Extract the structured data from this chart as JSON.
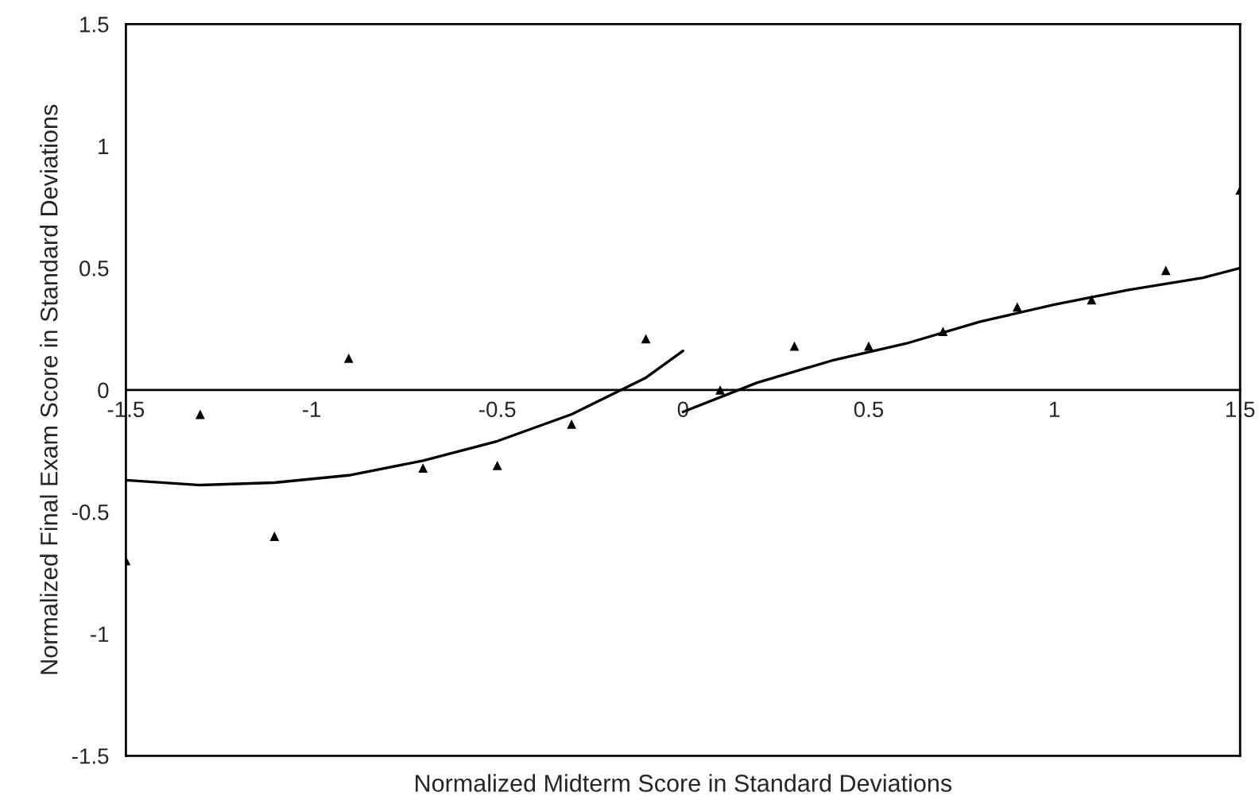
{
  "chart_data": {
    "type": "scatter",
    "xlabel": "Normalized Midterm Score in Standard Deviations",
    "ylabel": "Normalized Final Exam Score in Standard Deviations",
    "xlim": [
      -1.5,
      1.5
    ],
    "ylim": [
      -1.5,
      1.5
    ],
    "xticks": [
      -1.5,
      -1,
      -0.5,
      0,
      0.5,
      1,
      1.5
    ],
    "yticks": [
      -1.5,
      -1,
      -0.5,
      0,
      0.5,
      1,
      1.5
    ],
    "grid": false,
    "legend": false,
    "marker": "triangle",
    "series": [
      {
        "color": "#000000",
        "x": [
          -1.5,
          -1.3,
          -1.1,
          -0.9,
          -0.7,
          -0.5,
          -0.3,
          -0.1,
          0.1,
          0.3,
          0.5,
          0.7,
          0.9,
          1.1,
          1.3,
          1.5
        ],
        "values": [
          -0.7,
          -0.1,
          -0.6,
          0.13,
          -0.32,
          -0.31,
          -0.14,
          0.21,
          0.0,
          0.18,
          0.18,
          0.24,
          0.34,
          0.37,
          0.49,
          0.82
        ]
      },
      {
        "type": "line",
        "color": "#000000",
        "marker": "none",
        "line_style": "solid",
        "x": [
          -1.5,
          -1.3,
          -1.1,
          -0.9,
          -0.7,
          -0.5,
          -0.3,
          -0.1,
          0
        ],
        "values": [
          -0.37,
          -0.39,
          -0.38,
          -0.35,
          -0.29,
          -0.21,
          -0.1,
          0.05,
          0.16
        ]
      },
      {
        "type": "line",
        "color": "#000000",
        "marker": "none",
        "line_style": "solid",
        "x": [
          0,
          0.2,
          0.4,
          0.6,
          0.8,
          1.0,
          1.2,
          1.4,
          1.5
        ],
        "values": [
          -0.09,
          0.03,
          0.12,
          0.19,
          0.28,
          0.35,
          0.41,
          0.46,
          0.5
        ]
      }
    ]
  }
}
